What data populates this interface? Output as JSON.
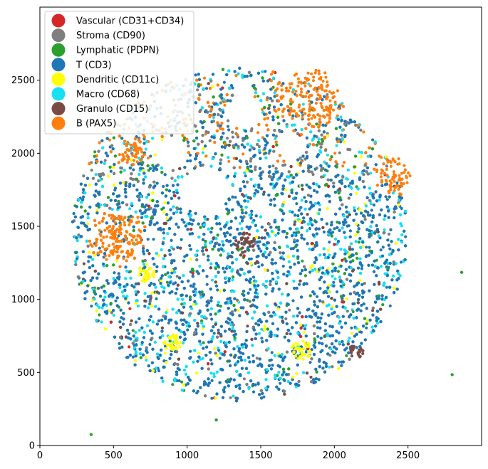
{
  "chart_data": {
    "type": "scatter",
    "title": "",
    "xlabel": "",
    "ylabel": "",
    "xlim": [
      0,
      3000
    ],
    "ylim": [
      0,
      3000
    ],
    "xticks": [
      0,
      500,
      1000,
      1500,
      2000,
      2500
    ],
    "yticks": [
      0,
      500,
      1000,
      1500,
      2000,
      2500
    ],
    "grid": false,
    "legend_position": "top-left",
    "disc": {
      "center": [
        1355,
        1445
      ],
      "radius": 1140
    },
    "series": [
      {
        "name": "Vascular (CD31+CD34)",
        "color": "#d62728",
        "clusters": []
      },
      {
        "name": "Stroma (CD90)",
        "color": "#7f7f7f",
        "clusters": []
      },
      {
        "name": "Lymphatic (PDPN)",
        "color": "#2ca02c",
        "clusters": [],
        "outliers": [
          [
            348,
            75
          ],
          [
            1198,
            175
          ],
          [
            2800,
            485
          ],
          [
            2865,
            1185
          ]
        ]
      },
      {
        "name": "T (CD3)",
        "color": "#1f77b4",
        "clusters": []
      },
      {
        "name": "Dendritic (CD11c)",
        "color": "#ffff00",
        "clusters": [
          [
            900,
            700,
            60
          ],
          [
            1780,
            650,
            70
          ],
          [
            720,
            1180,
            60
          ]
        ]
      },
      {
        "name": "Macro (CD68)",
        "color": "#17e0f5",
        "clusters": []
      },
      {
        "name": "Granulo (CD15)",
        "color": "#7a4b45",
        "clusters": [
          [
            1390,
            1390,
            70
          ],
          [
            2150,
            650,
            50
          ]
        ]
      },
      {
        "name": "B (PAX5)",
        "color": "#ff7f0e",
        "clusters": [
          [
            530,
            1420,
            150
          ],
          [
            1850,
            2400,
            180
          ],
          [
            2400,
            1850,
            120
          ],
          [
            620,
            2000,
            80
          ]
        ]
      }
    ]
  }
}
